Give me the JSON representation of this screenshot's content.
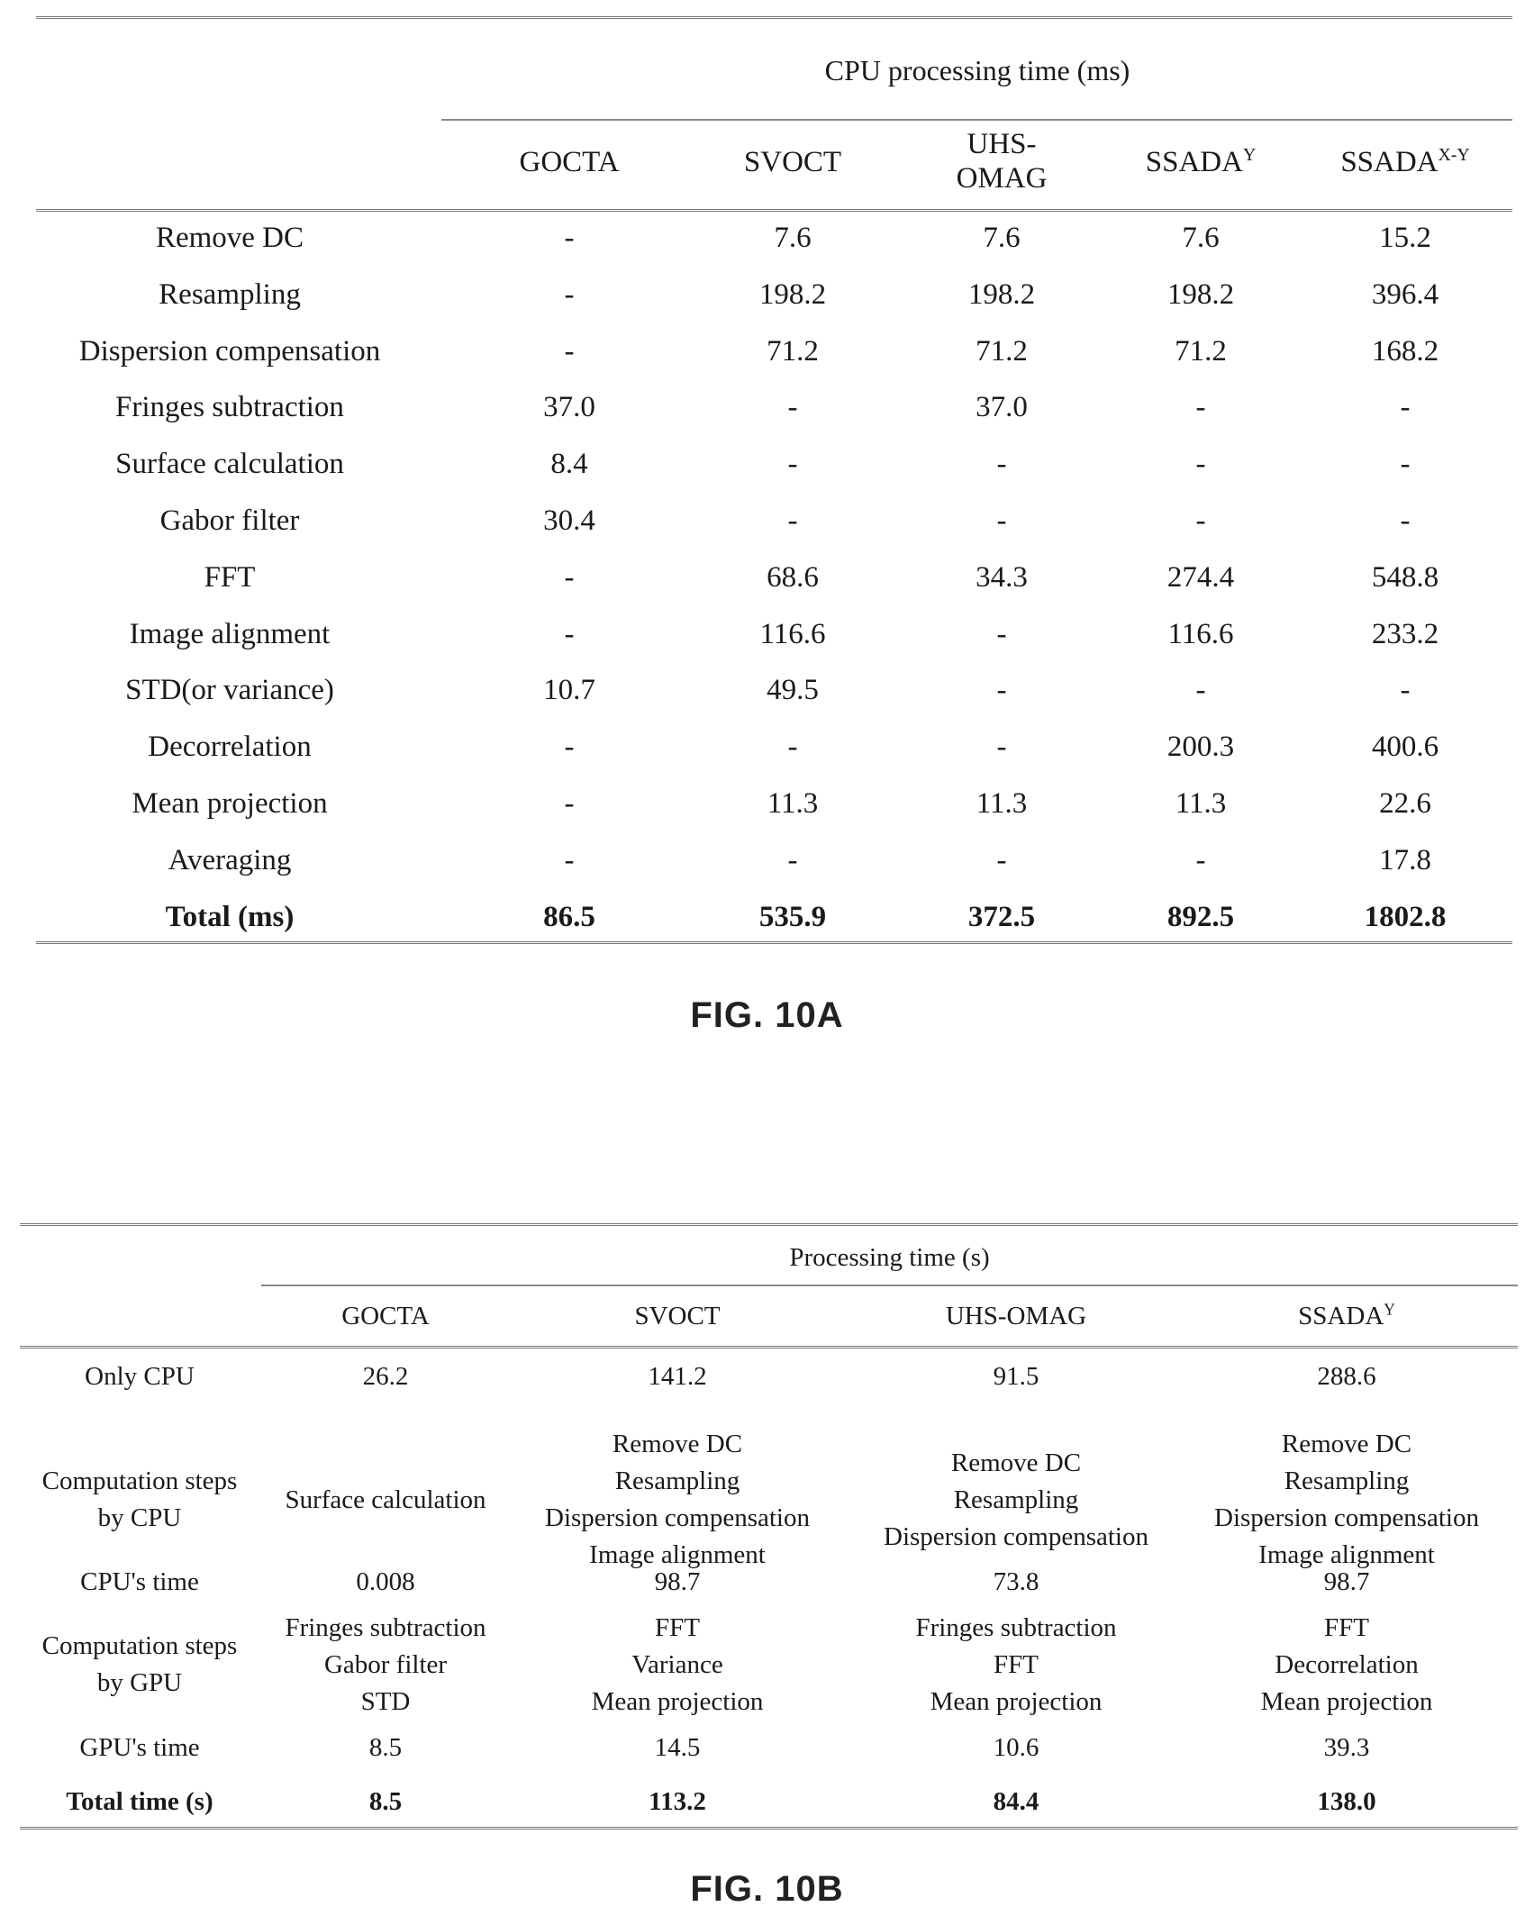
{
  "fig_a": {
    "caption": "FIG. 10A",
    "group_header": "CPU processing time (ms)",
    "columns": [
      {
        "label": "GOCTA",
        "sup": ""
      },
      {
        "label": "SVOCT",
        "sup": ""
      },
      {
        "label": "UHS-\nOMAG",
        "sup": ""
      },
      {
        "label": "SSADA",
        "sup": "Y"
      },
      {
        "label": "SSADA",
        "sup": "X-Y"
      }
    ],
    "rows": [
      {
        "label": "Remove DC",
        "values": [
          "-",
          "7.6",
          "7.6",
          "7.6",
          "15.2"
        ]
      },
      {
        "label": "Resampling",
        "values": [
          "-",
          "198.2",
          "198.2",
          "198.2",
          "396.4"
        ]
      },
      {
        "label": "Dispersion compensation",
        "values": [
          "-",
          "71.2",
          "71.2",
          "71.2",
          "168.2"
        ]
      },
      {
        "label": "Fringes subtraction",
        "values": [
          "37.0",
          "-",
          "37.0",
          "-",
          "-"
        ]
      },
      {
        "label": "Surface calculation",
        "values": [
          "8.4",
          "-",
          "-",
          "-",
          "-"
        ]
      },
      {
        "label": "Gabor filter",
        "values": [
          "30.4",
          "-",
          "-",
          "-",
          "-"
        ]
      },
      {
        "label": "FFT",
        "values": [
          "-",
          "68.6",
          "34.3",
          "274.4",
          "548.8"
        ]
      },
      {
        "label": "Image alignment",
        "values": [
          "-",
          "116.6",
          "-",
          "116.6",
          "233.2"
        ]
      },
      {
        "label": "STD(or variance)",
        "values": [
          "10.7",
          "49.5",
          "-",
          "-",
          "-"
        ]
      },
      {
        "label": "Decorrelation",
        "values": [
          "-",
          "-",
          "-",
          "200.3",
          "400.6"
        ]
      },
      {
        "label": "Mean projection",
        "values": [
          "-",
          "11.3",
          "11.3",
          "11.3",
          "22.6"
        ]
      },
      {
        "label": "Averaging",
        "values": [
          "-",
          "-",
          "-",
          "-",
          "17.8"
        ]
      }
    ],
    "total": {
      "label": "Total (ms)",
      "values": [
        "86.5",
        "535.9",
        "372.5",
        "892.5",
        "1802.8"
      ]
    }
  },
  "fig_b": {
    "caption": "FIG. 10B",
    "group_header": "Processing time (s)",
    "columns": [
      {
        "label": "GOCTA",
        "sup": ""
      },
      {
        "label": "SVOCT",
        "sup": ""
      },
      {
        "label": "UHS-OMAG",
        "sup": ""
      },
      {
        "label": "SSADA",
        "sup": "Y"
      }
    ],
    "rows": [
      {
        "label": "Only CPU",
        "values": [
          "26.2",
          "141.2",
          "91.5",
          "288.6"
        ]
      },
      {
        "label": "Computation steps\nby CPU",
        "values": [
          "Surface calculation",
          "Remove DC\nResampling\nDispersion compensation\nImage alignment",
          "Remove DC\nResampling\nDispersion compensation",
          "Remove DC\nResampling\nDispersion compensation\nImage alignment"
        ]
      },
      {
        "label": "CPU's time",
        "values": [
          "0.008",
          "98.7",
          "73.8",
          "98.7"
        ]
      },
      {
        "label": "Computation steps\nby GPU",
        "values": [
          "Fringes subtraction\nGabor filter\nSTD",
          "FFT\nVariance\nMean projection",
          "Fringes subtraction\nFFT\nMean projection",
          "FFT\nDecorrelation\nMean projection"
        ]
      },
      {
        "label": "GPU's time",
        "values": [
          "8.5",
          "14.5",
          "10.6",
          "39.3"
        ]
      }
    ],
    "total": {
      "label": "Total time (s)",
      "values": [
        "8.5",
        "113.2",
        "84.4",
        "138.0"
      ]
    }
  }
}
